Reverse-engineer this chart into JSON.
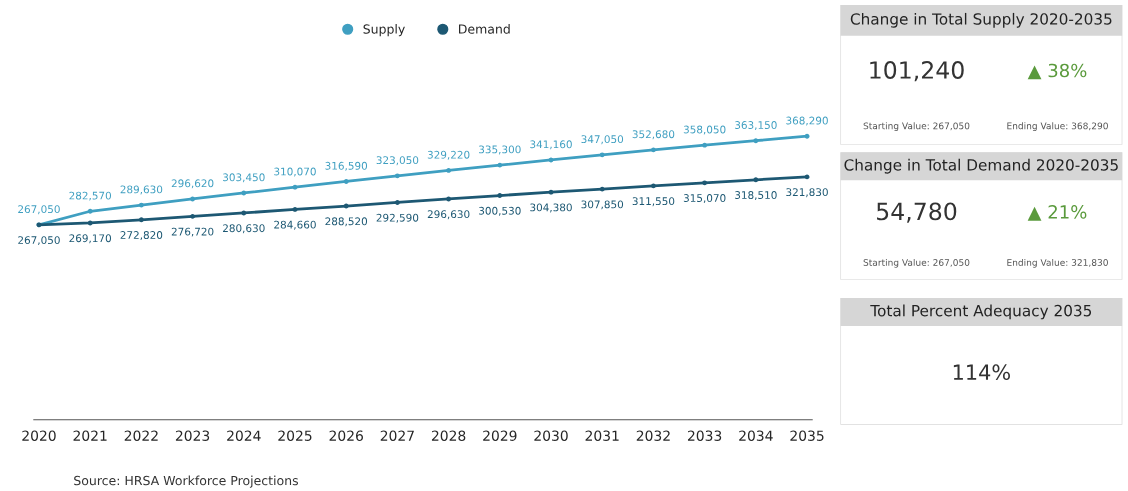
{
  "chart_data": [
    {
      "type": "line",
      "categories": [
        "2020",
        "2021",
        "2022",
        "2023",
        "2024",
        "2025",
        "2026",
        "2027",
        "2028",
        "2029",
        "2030",
        "2031",
        "2032",
        "2033",
        "2034",
        "2035"
      ],
      "series": [
        {
          "name": "Supply",
          "color": "#3f9fc1",
          "values": [
            267050,
            282570,
            289630,
            296620,
            303450,
            310070,
            316590,
            323050,
            329220,
            335300,
            341160,
            347050,
            352680,
            358050,
            363150,
            368290
          ],
          "value_labels": [
            "267,050",
            "282,570",
            "289,630",
            "296,620",
            "303,450",
            "310,070",
            "316,590",
            "323,050",
            "329,220",
            "335,300",
            "341,160",
            "347,050",
            "352,680",
            "358,050",
            "363,150",
            "368,290"
          ]
        },
        {
          "name": "Demand",
          "color": "#1d5873",
          "values": [
            267050,
            269170,
            272820,
            276720,
            280630,
            284660,
            288520,
            292590,
            296630,
            300530,
            304380,
            307850,
            311550,
            315070,
            318510,
            321830
          ],
          "value_labels": [
            "267,050",
            "269,170",
            "272,820",
            "276,720",
            "280,630",
            "284,660",
            "288,520",
            "292,590",
            "296,630",
            "300,530",
            "304,380",
            "307,850",
            "311,550",
            "315,070",
            "318,510",
            "321,830"
          ]
        }
      ],
      "legend": "top",
      "marker": "circle",
      "line_style": "solid",
      "grid": false,
      "tick_labels": "x",
      "annotations": [
        "Source: HRSA Workforce Projections"
      ]
    },
    {
      "type": "other",
      "title": "Change in Total Supply 2020-2035",
      "annotations": [
        "101,240",
        "▲ 38%",
        "Starting Value: 267,050",
        "Ending Value: 368,290"
      ]
    },
    {
      "type": "other",
      "title": "Change in Total Demand 2020-2035",
      "annotations": [
        "54,780",
        "▲ 21%",
        "Starting Value: 267,050",
        "Ending Value: 321,830"
      ]
    },
    {
      "type": "other",
      "title": "Total Percent Adequacy 2035",
      "annotations": [
        "114%"
      ]
    }
  ]
}
